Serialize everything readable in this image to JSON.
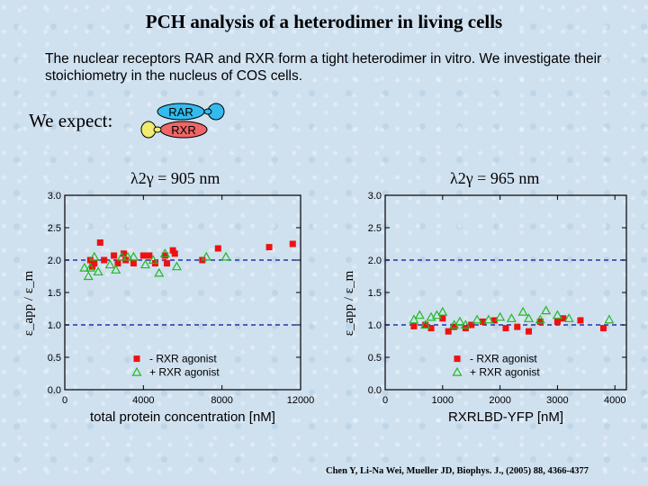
{
  "slide": {
    "title": "PCH analysis of a heterodimer in living cells",
    "intro": "The nuclear receptors RAR and RXR form a tight heterodimer in vitro. We investigate their stoichiometry in the nucleus of COS cells.",
    "expect_label": "We expect:",
    "diagram": {
      "top_label": "RAR",
      "bottom_label": "RXR"
    },
    "citation": "Chen Y, Li-Na Wei, Mueller JD, Biophys. J., (2005) 88, 4366-4377",
    "left_lambda": "λ2γ = 905 nm",
    "right_lambda": "λ2γ = 965 nm",
    "colors": {
      "minus": "#ee1111",
      "plus": "#22bb22",
      "ref_line": "#2233aa",
      "rar": "#33bbee",
      "rxr": "#ee6666"
    }
  },
  "chart_data": [
    {
      "type": "scatter",
      "xlabel": "total protein concentration [nM]",
      "ylabel": "ε_app / ε_m",
      "xlim": [
        0,
        12000
      ],
      "ylim": [
        0,
        3.0
      ],
      "xticks": [
        "0",
        "4000",
        "8000",
        "12000"
      ],
      "yticks": [
        "0.0",
        "0.5",
        "1.0",
        "1.5",
        "2.0",
        "2.5",
        "3.0"
      ],
      "ref_lines": [
        1.0,
        2.0
      ],
      "legend": {
        "position": "bottom-center",
        "minus": "- RXR agonist",
        "plus": "+ RXR agonist"
      },
      "series": [
        {
          "name": "- RXR agonist",
          "marker": "square",
          "x": [
            1300,
            1400,
            1500,
            1800,
            2000,
            2500,
            2700,
            3000,
            3100,
            3500,
            4000,
            4300,
            4600,
            5100,
            5200,
            5500,
            5600,
            7000,
            7800,
            10400,
            11600
          ],
          "y": [
            2.0,
            1.9,
            1.95,
            2.27,
            2.0,
            2.07,
            1.95,
            2.1,
            2.0,
            1.95,
            2.07,
            2.07,
            1.95,
            2.07,
            1.95,
            2.15,
            2.1,
            2.0,
            2.18,
            2.2,
            2.25
          ]
        },
        {
          "name": "+ RXR agonist",
          "marker": "triangle",
          "x": [
            1000,
            1200,
            1300,
            1500,
            1700,
            2300,
            2600,
            2900,
            3200,
            3500,
            4100,
            4500,
            4800,
            5100,
            5700,
            7200,
            8200
          ],
          "y": [
            1.88,
            1.75,
            1.88,
            2.05,
            1.82,
            1.93,
            1.85,
            2.05,
            2.05,
            2.05,
            1.93,
            2.0,
            1.8,
            2.1,
            1.9,
            2.05,
            2.05
          ]
        }
      ]
    },
    {
      "type": "scatter",
      "xlabel": "RXRLBD-YFP [nM]",
      "ylabel": "ε_app / ε_m",
      "xlim": [
        0,
        4200
      ],
      "ylim": [
        0,
        3.0
      ],
      "xticks": [
        "0",
        "1000",
        "2000",
        "3000",
        "4000"
      ],
      "yticks": [
        "0.0",
        "0.5",
        "1.0",
        "1.5",
        "2.0",
        "2.5",
        "3.0"
      ],
      "ref_lines": [
        1.0,
        2.0
      ],
      "legend": {
        "position": "bottom-center",
        "minus": "- RXR agonist",
        "plus": "+ RXR agonist"
      },
      "series": [
        {
          "name": "- RXR agonist",
          "marker": "square",
          "x": [
            500,
            700,
            800,
            1000,
            1100,
            1200,
            1400,
            1500,
            1700,
            1900,
            2100,
            2300,
            2500,
            2700,
            3000,
            3100,
            3400,
            3800
          ],
          "y": [
            0.98,
            1.0,
            0.95,
            1.1,
            0.9,
            0.97,
            0.95,
            1.0,
            1.05,
            1.07,
            0.95,
            0.97,
            0.9,
            1.05,
            1.05,
            1.1,
            1.07,
            0.95
          ]
        },
        {
          "name": "+ RXR agonist",
          "marker": "triangle",
          "x": [
            500,
            600,
            700,
            800,
            900,
            1000,
            1200,
            1300,
            1400,
            1600,
            1800,
            2000,
            2200,
            2400,
            2500,
            2700,
            2800,
            3000,
            3200,
            3900
          ],
          "y": [
            1.08,
            1.15,
            1.0,
            1.12,
            1.15,
            1.2,
            1.0,
            1.05,
            1.0,
            1.08,
            1.08,
            1.12,
            1.1,
            1.2,
            1.1,
            1.08,
            1.22,
            1.15,
            1.1,
            1.08
          ]
        }
      ]
    }
  ]
}
